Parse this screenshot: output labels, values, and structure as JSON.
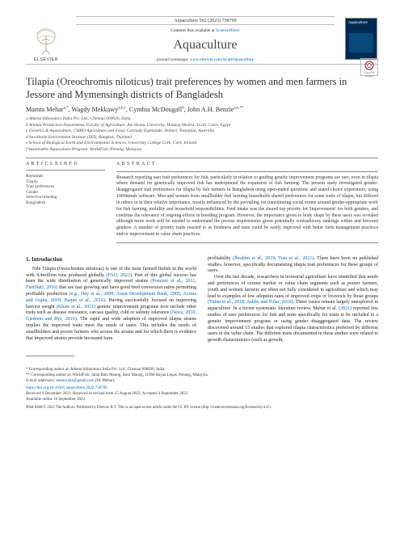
{
  "masthead": {
    "journal_ref": "Aquaculture 562 (2023) 738799",
    "available_at": "Contents lists available at",
    "sciencedirect": "ScienceDirect",
    "journal_title": "Aquaculture",
    "homepage_prefix": "journal homepage:",
    "homepage_url": "www.elsevier.com/locate/aquaculture",
    "publisher_word": "ELSEVIER",
    "cover_title": "Aquaculture",
    "check_updates": "Check for updates",
    "colors": {
      "link": "#0066aa",
      "rule": "#888888",
      "cover_bg": "#002a52",
      "cover_panel": "#064a7a"
    }
  },
  "title": "Tilapia (Oreochromis niloticus) trait preferences by women and men farmers in Jessore and Mymensingh districts of Bangladesh",
  "authors_html": "Mamta Mehar",
  "authors": [
    {
      "name": "Mamta Mehar",
      "marks": "a,*"
    },
    {
      "name": "Wagdy Mekkawy",
      "marks": "a,b,c"
    },
    {
      "name": "Cynthia McDougall",
      "marks": "d"
    },
    {
      "name": "John A.H. Benzie",
      "marks": "a,e,**"
    }
  ],
  "affiliations": [
    "a Athena Infonomics India Pvt. Ltd., Chennai 600020, India",
    "b Animal Production Department, Faculty of Agriculture, Ain Shams University, Hadayq Shobra, 11241 Cairo, Egypt",
    "c Genetics & Aquaculture, CSIRO Agriculture and Food, Carmody Esplanade, Hobart, Tasmania, Australia",
    "d Stockholm Environment Institute (SEI), Bangkok, Thailand",
    "e School of Biological Earth and Environmental Sciences, University College Cork, Cork, Ireland",
    "f Sustainable Aquaculture Program, WorldFish, Penang, Malaysia"
  ],
  "article_info": {
    "label": "A R T I C L E  I N F O",
    "kw_label": "Keywords:",
    "keywords": [
      "Tilapia",
      "Trait preferences",
      "Gender",
      "Selective breeding",
      "Bangladesh"
    ]
  },
  "abstract": {
    "label": "A B S T R A C T",
    "text": "Research reporting user trait preferences for fish, particularly in relation to guiding genetic improvement programs are rare, even in tilapia where demand for genetically improved fish has underpinned the expansion of fish farming. The present study investigated gender-disaggregated trait preferences for tilapia by fish farmers in Bangladesh using open-ended questions and stated choice experiment, using 1000minds software. Men and women from smallholder fish farming households shared preferences for some traits of tilapia, but differed in others or in their relative importance, mostly influenced by the prevailing yet transitioning social norms around gender-appropriate work for fish farming, mobility and household responsibilities. Feed intake was the shared top priority for 'improvement' for both genders, and confirms the relevance of ongoing efforts in breeding program. However, the importance given to body shape by these users was revealed although more work will be needed to understand the precise requirements given potentially contradictory rankings within and between genders. A number of priority traits reacted to as freshness and taste could be easily improved with better farm management practices and/or improvement in value chain practices."
  },
  "section1": {
    "heading": "1. Introduction",
    "para": "Nile Tilapia (Oreochromis niloticus) is one of the most farmed finfish in the world with 4.4million tons produced globally (FAO, 2022). Part of this global success has been the wide distribution of genetically improved strains (Ponzoni et al., 2011; FishStatJ, 2016) that are fast growing and have good feed conversion ratios permitting profitable production (e.g., Dey et al., 2000; Asian Development Bank, 2005; Acosta and Gupta, 2010; Haque et al., 2016). Having successfully focused on improving harvest weight (Khaw et al., 2011) genetic improvement programs now include other traits such as disease resistance, carcass quality, cold or salinity tolerance (Neira, 2010; Gjedrem and Rye, 2016). The rapid and wide adoption of improved tilapia strains implies the improved traits meet the needs of users. This includes the needs of smallholders and poorer farmers who access the strains and for which there is evidence that improved strains provide increased farm"
  },
  "col2": {
    "para1": "profitability (Ibrahim et al., 2019; Tran et al., 2021). There have been no published studies, however, specifically documenting tilapia trait preferences for these groups of users.",
    "para2": "Over the last decade, researchers in terrestrial agriculture have identified that needs and preferences of certain market or value chain segments such as poorer farmers, youth and women farmers are often not fully considered in agriculture and which may lead to examples of low adoption rates of improved crops or livestock by those groups (Tufan et al., 2018; Ashby and Polar, 2019). These issues remain largely unexplored in aquaculture. In a recent systematic literature review, Mehar et al. (2021) reported few studies of user preferences for fish and none specifically for traits to be included in a genetic improvement program or using gender disaggregated data. The review discovered around 15 studies that explored tilapia characteristics preferred by different users in the value chain. The different traits documented in these studies were related to growth characteristics (such as growth,"
  },
  "footnotes": {
    "lines": [
      "* Corresponding author at: Athena Infonomics India Pvt. Ltd., Chennai 600020, India.",
      "** Corresponding author at: WorldFish, Jalan Batu Maung, Batu Maung, 11960 Bayan Lepas, Penang, Malaysia.",
      "E-mail addresses: mamta.dse@gmail.com (M. Mehar)."
    ],
    "doi": "https://doi.org/10.1016/j.aquaculture.2022.738799",
    "history": "Received 9 December 2021; Received in revised form 15 August 2022; Accepted 4 September 2022",
    "avail": "Available online 10 September 2022",
    "copyright": "0044-8486/© 2022 The Authors. Published by Elsevier B.V. This is an open access article under the CC BY license (http://creativecommons.org/licenses/by/4.0/)."
  },
  "typography": {
    "title_fontsize_pt": 12.5,
    "author_fontsize_pt": 8.2,
    "body_fontsize_pt": 6.0,
    "abstract_fontsize_pt": 5.8,
    "affil_fontsize_pt": 5.4,
    "font_family": "Georgia / Times-like serif"
  }
}
